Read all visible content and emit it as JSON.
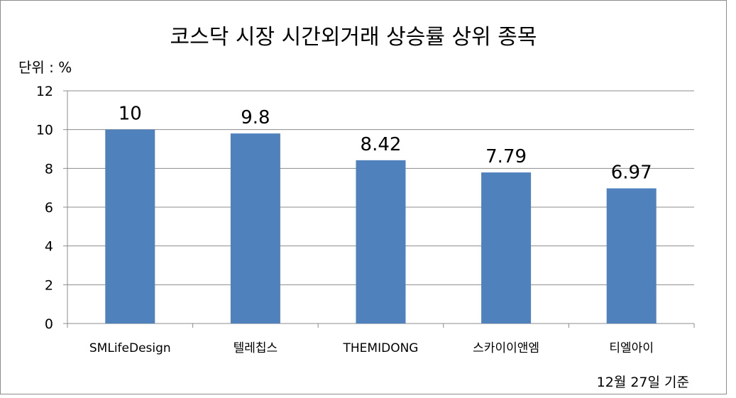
{
  "chart_data": {
    "type": "bar",
    "title": "코스닥 시장  시간외거래 상승률 상위 종목",
    "unit_label": "단위 : %",
    "note": "12월 27일 기준",
    "categories": [
      "SMLifeDesign",
      "텔레칩스",
      "THEMIDONG",
      "스카이이앤엠",
      "티엘아이"
    ],
    "values": [
      10,
      9.8,
      8.42,
      7.79,
      6.97
    ],
    "data_labels": [
      "10",
      "9.8",
      "8.42",
      "7.79",
      "6.97"
    ],
    "ylim": [
      0,
      12
    ],
    "yticks": [
      0,
      2,
      4,
      6,
      8,
      10,
      12
    ],
    "grid": true,
    "legend": "none",
    "bar_color": "#4f81bd",
    "grid_color": "#8c8c8c"
  }
}
